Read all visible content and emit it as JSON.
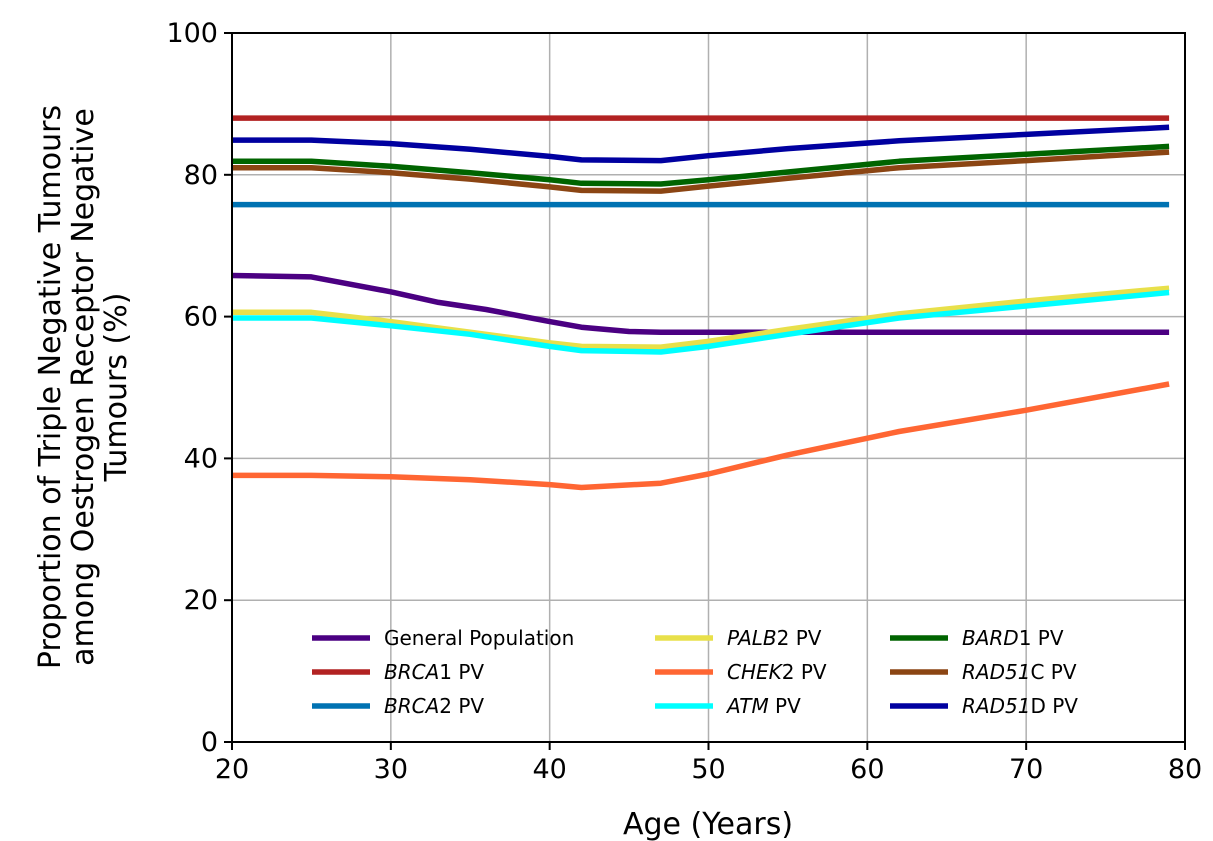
{
  "chart_data": {
    "type": "line",
    "xlabel": "Age (Years)",
    "ylabel_lines": [
      "Proportion of Triple Negative Tumours",
      "among Oestrogen Receptor Negative",
      "Tumours (%)"
    ],
    "xlim": [
      20,
      80
    ],
    "ylim": [
      0,
      100
    ],
    "xticks": [
      20,
      30,
      40,
      50,
      60,
      70,
      80
    ],
    "yticks": [
      0,
      20,
      40,
      60,
      80,
      100
    ],
    "grid": true,
    "legend_placement": "lower-center",
    "series": [
      {
        "gene": "",
        "suffix": "General Population",
        "color": "#4b0082",
        "points": [
          [
            20,
            65.8
          ],
          [
            25,
            65.6
          ],
          [
            30,
            63.5
          ],
          [
            33,
            62.0
          ],
          [
            36,
            61.0
          ],
          [
            40,
            59.3
          ],
          [
            42,
            58.5
          ],
          [
            45,
            57.9
          ],
          [
            47,
            57.8
          ],
          [
            79,
            57.8
          ]
        ]
      },
      {
        "gene": "BRCA",
        "suffix": "1 PV",
        "color": "#b22222",
        "points": [
          [
            20,
            88.0
          ],
          [
            79,
            88.0
          ]
        ]
      },
      {
        "gene": "BRCA",
        "suffix": "2 PV",
        "color": "#0072b2",
        "points": [
          [
            20,
            75.8
          ],
          [
            79,
            75.8
          ]
        ]
      },
      {
        "gene": "PALB",
        "suffix": "2 PV",
        "color": "#e8e04a",
        "points": [
          [
            20,
            60.6
          ],
          [
            25,
            60.6
          ],
          [
            30,
            59.3
          ],
          [
            35,
            57.8
          ],
          [
            40,
            56.3
          ],
          [
            42,
            55.8
          ],
          [
            47,
            55.7
          ],
          [
            50,
            56.5
          ],
          [
            55,
            58.2
          ],
          [
            62,
            60.4
          ],
          [
            70,
            62.2
          ],
          [
            79,
            64.0
          ]
        ]
      },
      {
        "gene": "CHEK",
        "suffix": "2 PV",
        "color": "#ff6633",
        "points": [
          [
            20,
            37.6
          ],
          [
            25,
            37.6
          ],
          [
            30,
            37.4
          ],
          [
            35,
            37.0
          ],
          [
            40,
            36.3
          ],
          [
            42,
            35.9
          ],
          [
            47,
            36.5
          ],
          [
            50,
            37.8
          ],
          [
            55,
            40.5
          ],
          [
            62,
            43.8
          ],
          [
            70,
            46.8
          ],
          [
            79,
            50.5
          ]
        ]
      },
      {
        "gene": "ATM",
        "suffix": " PV",
        "color": "#00ffff",
        "points": [
          [
            20,
            59.8
          ],
          [
            25,
            59.8
          ],
          [
            30,
            58.7
          ],
          [
            35,
            57.5
          ],
          [
            40,
            55.8
          ],
          [
            42,
            55.2
          ],
          [
            47,
            55.0
          ],
          [
            50,
            55.8
          ],
          [
            55,
            57.5
          ],
          [
            62,
            59.8
          ],
          [
            70,
            61.5
          ],
          [
            79,
            63.4
          ]
        ]
      },
      {
        "gene": "BARD",
        "suffix": "1 PV",
        "color": "#006400",
        "points": [
          [
            20,
            81.9
          ],
          [
            25,
            81.9
          ],
          [
            30,
            81.2
          ],
          [
            35,
            80.3
          ],
          [
            40,
            79.3
          ],
          [
            42,
            78.8
          ],
          [
            47,
            78.7
          ],
          [
            50,
            79.3
          ],
          [
            55,
            80.4
          ],
          [
            62,
            81.9
          ],
          [
            70,
            82.9
          ],
          [
            79,
            84.0
          ]
        ]
      },
      {
        "gene": "RAD51",
        "suffix": "C PV",
        "color": "#8b4513",
        "points": [
          [
            20,
            81.0
          ],
          [
            25,
            81.0
          ],
          [
            30,
            80.3
          ],
          [
            35,
            79.4
          ],
          [
            40,
            78.3
          ],
          [
            42,
            77.8
          ],
          [
            47,
            77.7
          ],
          [
            50,
            78.4
          ],
          [
            55,
            79.5
          ],
          [
            62,
            81.0
          ],
          [
            70,
            82.0
          ],
          [
            79,
            83.2
          ]
        ]
      },
      {
        "gene": "RAD51",
        "suffix": "D PV",
        "color": "#0000a0",
        "points": [
          [
            20,
            84.9
          ],
          [
            25,
            84.9
          ],
          [
            30,
            84.4
          ],
          [
            35,
            83.6
          ],
          [
            40,
            82.6
          ],
          [
            42,
            82.1
          ],
          [
            47,
            82.0
          ],
          [
            50,
            82.7
          ],
          [
            55,
            83.7
          ],
          [
            62,
            84.8
          ],
          [
            70,
            85.7
          ],
          [
            79,
            86.7
          ]
        ]
      }
    ]
  }
}
